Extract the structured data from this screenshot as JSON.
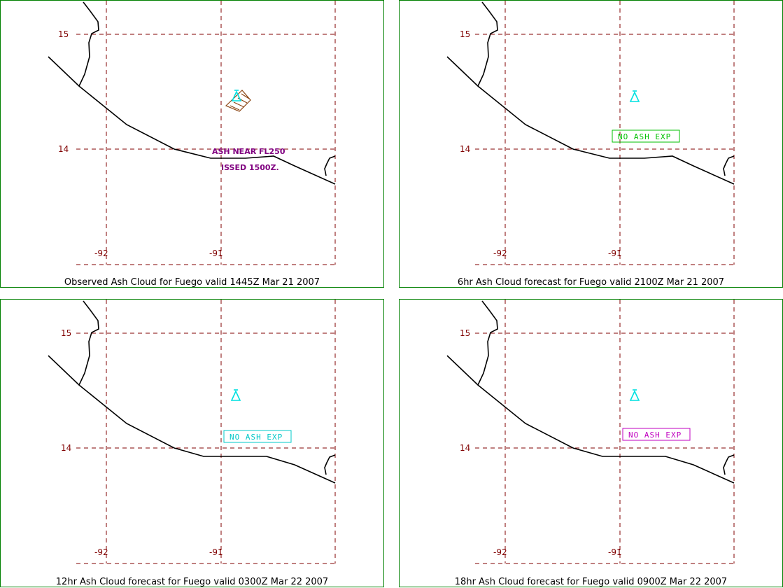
{
  "panels": [
    {
      "caption": "Observed Ash Cloud for Fuego valid 1445Z Mar 21 2007",
      "lat_labels": [
        "15",
        "14"
      ],
      "lon_labels": [
        "-92",
        "-91"
      ],
      "annotation_lines": [
        "ASH NEAR FL250",
        "ISSED 1500Z."
      ],
      "status_box": null,
      "volcano_icon": "volcano-triangle-icon",
      "ash_polygon": true
    },
    {
      "caption": "6hr Ash Cloud forecast for Fuego valid 2100Z Mar 21 2007",
      "lat_labels": [
        "15",
        "14"
      ],
      "lon_labels": [
        "-92",
        "-91"
      ],
      "annotation_lines": [],
      "status_box": {
        "text": "NO ASH EXP",
        "color": "#00c000"
      },
      "volcano_icon": "volcano-triangle-icon",
      "ash_polygon": false
    },
    {
      "caption": "12hr Ash Cloud forecast for Fuego valid 0300Z Mar 22 2007",
      "lat_labels": [
        "15",
        "14"
      ],
      "lon_labels": [
        "-92",
        "-91"
      ],
      "annotation_lines": [],
      "status_box": {
        "text": "NO ASH EXP",
        "color": "#00c8c8"
      },
      "volcano_icon": "volcano-triangle-icon",
      "ash_polygon": false
    },
    {
      "caption": "18hr Ash Cloud forecast for Fuego valid 0900Z Mar 22 2007",
      "lat_labels": [
        "15",
        "14"
      ],
      "lon_labels": [
        "-92",
        "-91"
      ],
      "annotation_lines": [],
      "status_box": {
        "text": "NO ASH EXP",
        "color": "#c000c0"
      },
      "volcano_icon": "volcano-triangle-icon",
      "ash_polygon": false
    }
  ],
  "colors": {
    "border": "#008000",
    "grid": "#800000",
    "coast": "#000000",
    "volcano": "#00e0e0",
    "ash": "#8b4513"
  }
}
